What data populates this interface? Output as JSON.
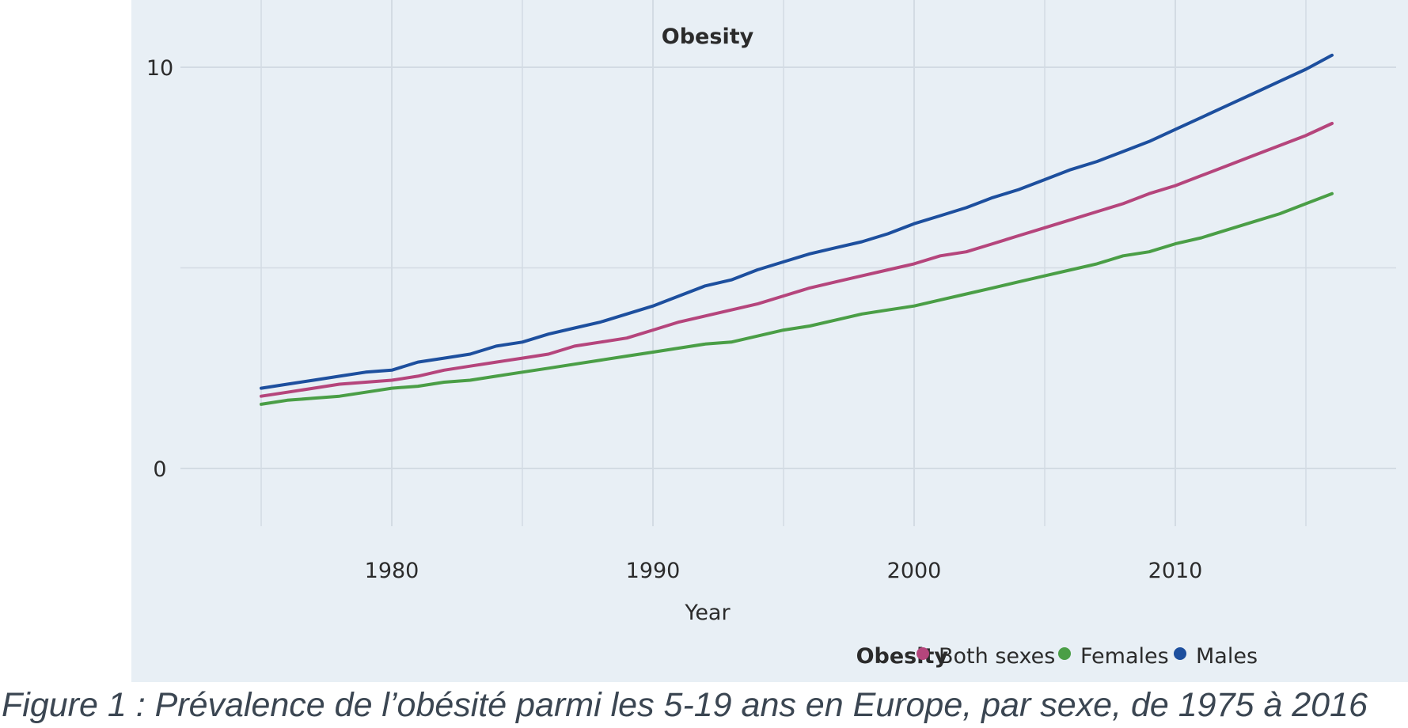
{
  "caption": "Figure 1 :  Prévalence de l’obésité parmi les 5-19 ans en Europe, par sexe, de 1975 à 2016",
  "chart_data": {
    "type": "line",
    "title": "Obesity",
    "xlabel": "Year",
    "ylabel": "",
    "xlim": [
      1975,
      2016
    ],
    "ylim": [
      0,
      10
    ],
    "x_ticks": [
      1980,
      1990,
      2000,
      2010
    ],
    "y_ticks": [
      0,
      10
    ],
    "grid": true,
    "legend_title": "Obesity",
    "legend_position": "bottom-right",
    "x": [
      1975,
      1976,
      1977,
      1978,
      1979,
      1980,
      1981,
      1982,
      1983,
      1984,
      1985,
      1986,
      1987,
      1988,
      1989,
      1990,
      1991,
      1992,
      1993,
      1994,
      1995,
      1996,
      1997,
      1998,
      1999,
      2000,
      2001,
      2002,
      2003,
      2004,
      2005,
      2006,
      2007,
      2008,
      2009,
      2010,
      2011,
      2012,
      2013,
      2014,
      2015,
      2016
    ],
    "series": [
      {
        "name": "Both sexes",
        "color": "#b5457c",
        "values": [
          1.8,
          1.9,
          2.0,
          2.1,
          2.15,
          2.2,
          2.3,
          2.45,
          2.55,
          2.65,
          2.75,
          2.85,
          3.05,
          3.15,
          3.25,
          3.45,
          3.65,
          3.8,
          3.95,
          4.1,
          4.3,
          4.5,
          4.65,
          4.8,
          4.95,
          5.1,
          5.3,
          5.4,
          5.6,
          5.8,
          6.0,
          6.2,
          6.4,
          6.6,
          6.85,
          7.05,
          7.3,
          7.55,
          7.8,
          8.05,
          8.3,
          8.6
        ]
      },
      {
        "name": "Females",
        "color": "#4a9e46",
        "values": [
          1.6,
          1.7,
          1.75,
          1.8,
          1.9,
          2.0,
          2.05,
          2.15,
          2.2,
          2.3,
          2.4,
          2.5,
          2.6,
          2.7,
          2.8,
          2.9,
          3.0,
          3.1,
          3.15,
          3.3,
          3.45,
          3.55,
          3.7,
          3.85,
          3.95,
          4.05,
          4.2,
          4.35,
          4.5,
          4.65,
          4.8,
          4.95,
          5.1,
          5.3,
          5.4,
          5.6,
          5.75,
          5.95,
          6.15,
          6.35,
          6.6,
          6.85
        ]
      },
      {
        "name": "Males",
        "color": "#1d4f9e",
        "values": [
          2.0,
          2.1,
          2.2,
          2.3,
          2.4,
          2.45,
          2.65,
          2.75,
          2.85,
          3.05,
          3.15,
          3.35,
          3.5,
          3.65,
          3.85,
          4.05,
          4.3,
          4.55,
          4.7,
          4.95,
          5.15,
          5.35,
          5.5,
          5.65,
          5.85,
          6.1,
          6.3,
          6.5,
          6.75,
          6.95,
          7.2,
          7.45,
          7.65,
          7.9,
          8.15,
          8.45,
          8.75,
          9.05,
          9.35,
          9.65,
          9.95,
          10.3
        ]
      }
    ]
  }
}
